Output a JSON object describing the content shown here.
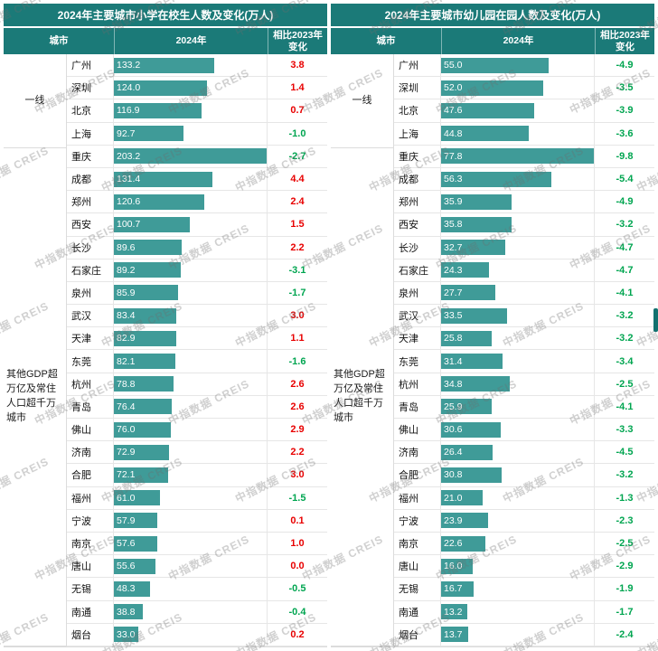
{
  "watermark": "中指数据 CREIS",
  "colors": {
    "header_teal": "#1b7a78",
    "bar_teal": "#3f9b98",
    "positive_red": "#e80000",
    "negative_green": "#00a550"
  },
  "chart_data": [
    {
      "type": "bar",
      "title": "2024年主要城市小学在校生人数及变化(万人)",
      "columns": [
        "城市",
        "2024年",
        "相比2023年变化"
      ],
      "xlabel": "",
      "ylabel": "",
      "xlim": [
        0,
        203.2
      ],
      "legend": "none",
      "groups": [
        {
          "label": "一线",
          "rows": [
            [
              "广州",
              133.2,
              "3.8"
            ],
            [
              "深圳",
              124.0,
              "1.4"
            ],
            [
              "北京",
              116.9,
              "0.7"
            ],
            [
              "上海",
              92.7,
              "-1.0"
            ]
          ]
        },
        {
          "label": "其他GDP超万亿及常住人口超千万城市",
          "rows": [
            [
              "重庆",
              203.2,
              "-2.7"
            ],
            [
              "成都",
              131.4,
              "4.4"
            ],
            [
              "郑州",
              120.6,
              "2.4"
            ],
            [
              "西安",
              100.7,
              "1.5"
            ],
            [
              "长沙",
              89.6,
              "2.2"
            ],
            [
              "石家庄",
              89.2,
              "-3.1"
            ],
            [
              "泉州",
              85.9,
              "-1.7"
            ],
            [
              "武汉",
              83.4,
              "3.0"
            ],
            [
              "天津",
              82.9,
              "1.1"
            ],
            [
              "东莞",
              82.1,
              "-1.6"
            ],
            [
              "杭州",
              78.8,
              "2.6"
            ],
            [
              "青岛",
              76.4,
              "2.6"
            ],
            [
              "佛山",
              76.0,
              "2.9"
            ],
            [
              "济南",
              72.9,
              "2.2"
            ],
            [
              "合肥",
              72.1,
              "3.0"
            ],
            [
              "福州",
              61.0,
              "-1.5"
            ],
            [
              "宁波",
              57.9,
              "0.1"
            ],
            [
              "南京",
              57.6,
              "1.0"
            ],
            [
              "唐山",
              55.6,
              "0.0"
            ],
            [
              "无锡",
              48.3,
              "-0.5"
            ],
            [
              "南通",
              38.8,
              "-0.4"
            ],
            [
              "烟台",
              33.0,
              "0.2"
            ]
          ]
        }
      ]
    },
    {
      "type": "bar",
      "title": "2024年主要城市幼儿园在园人数及变化(万人)",
      "columns": [
        "城市",
        "2024年",
        "相比2023年变化"
      ],
      "xlabel": "",
      "ylabel": "",
      "xlim": [
        0,
        77.8
      ],
      "legend": "none",
      "groups": [
        {
          "label": "一线",
          "rows": [
            [
              "广州",
              55.0,
              "-4.9"
            ],
            [
              "深圳",
              52.0,
              "-3.5"
            ],
            [
              "北京",
              47.6,
              "-3.9"
            ],
            [
              "上海",
              44.8,
              "-3.6"
            ]
          ]
        },
        {
          "label": "其他GDP超万亿及常住人口超千万城市",
          "rows": [
            [
              "重庆",
              77.8,
              "-9.8"
            ],
            [
              "成都",
              56.3,
              "-5.4"
            ],
            [
              "郑州",
              35.9,
              "-4.9"
            ],
            [
              "西安",
              35.8,
              "-3.2"
            ],
            [
              "长沙",
              32.7,
              "-4.7"
            ],
            [
              "石家庄",
              24.3,
              "-4.7"
            ],
            [
              "泉州",
              27.7,
              "-4.1"
            ],
            [
              "武汉",
              33.5,
              "-3.2"
            ],
            [
              "天津",
              25.8,
              "-3.2"
            ],
            [
              "东莞",
              31.4,
              "-3.4"
            ],
            [
              "杭州",
              34.8,
              "-2.5"
            ],
            [
              "青岛",
              25.9,
              "-4.1"
            ],
            [
              "佛山",
              30.6,
              "-3.3"
            ],
            [
              "济南",
              26.4,
              "-4.5"
            ],
            [
              "合肥",
              30.8,
              "-3.2"
            ],
            [
              "福州",
              21.0,
              "-1.3"
            ],
            [
              "宁波",
              23.9,
              "-2.3"
            ],
            [
              "南京",
              22.6,
              "-2.5"
            ],
            [
              "唐山",
              16.0,
              "-2.9"
            ],
            [
              "无锡",
              16.7,
              "-1.9"
            ],
            [
              "南通",
              13.2,
              "-1.7"
            ],
            [
              "烟台",
              13.7,
              "-2.4"
            ]
          ]
        }
      ]
    }
  ]
}
